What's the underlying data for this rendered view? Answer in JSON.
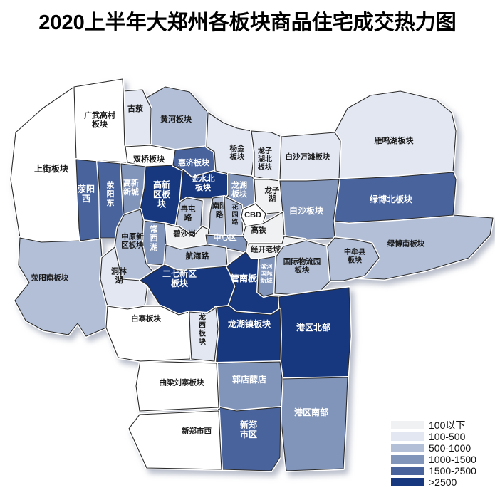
{
  "title": "2020上半年大郑州各板块商品住宅成交热力图",
  "legend": {
    "items": [
      {
        "label": "100以下",
        "color": "#f0f1f3"
      },
      {
        "label": "100-500",
        "color": "#e2e7f2"
      },
      {
        "label": "500-1000",
        "color": "#b2bfd6"
      },
      {
        "label": "1000-1500",
        "color": "#8194b9"
      },
      {
        "label": "1500-2500",
        "color": "#49639d"
      },
      {
        "label": ">2500",
        "color": "#17377e"
      }
    ]
  },
  "map": {
    "no_data_color": "#ffffff",
    "outline_color": "#2a2a2a",
    "regions": [
      {
        "id": "yanminghu",
        "label": [
          "雁鸣湖板块"
        ],
        "range": "100-500"
      },
      {
        "id": "lvbonan",
        "label": [
          "绿博南板块"
        ],
        "range": "500-1000"
      },
      {
        "id": "huanghe",
        "label": [
          "黄河板块"
        ],
        "range": "500-1000"
      },
      {
        "id": "guying",
        "label": [
          "古荥"
        ],
        "range": "100-500"
      },
      {
        "id": "shangjie",
        "label": [
          "上街板块"
        ],
        "range": null
      },
      {
        "id": "guangwu",
        "label": [
          "广武高村",
          "板块"
        ],
        "range": null
      },
      {
        "id": "shuangqiao",
        "label": [
          "双桥板块"
        ],
        "range": null
      },
      {
        "id": "xingyangnan",
        "label": [
          "荥阳南板块"
        ],
        "range": "500-1000"
      },
      {
        "id": "xingyangxi",
        "label": [
          "荥阳",
          "西"
        ],
        "range": "1500-2500"
      },
      {
        "id": "xingyangdong",
        "label": [
          "荥",
          "阳",
          "东"
        ],
        "range": "1500-2500"
      },
      {
        "id": "gaoxincheng",
        "label": [
          "高新",
          "新城"
        ],
        "range": "1000-1500"
      },
      {
        "id": "gaoxinqu",
        "label": [
          "高新",
          "区板",
          "块"
        ],
        "range": ">2500"
      },
      {
        "id": "huiji",
        "label": [
          "惠济板块"
        ],
        "range": "1500-2500"
      },
      {
        "id": "jinshuibei",
        "label": [
          "金水北",
          "板块"
        ],
        "range": ">2500"
      },
      {
        "id": "yangjin",
        "label": [
          "杨金",
          "板块"
        ],
        "range": "100-500"
      },
      {
        "id": "longzihubei",
        "label": [
          "龙子",
          "湖北",
          "板块"
        ],
        "range": "100-500"
      },
      {
        "id": "baishawantan",
        "label": [
          "白沙万滩板块"
        ],
        "range": "100-500"
      },
      {
        "id": "lvbobei",
        "label": [
          "绿博北板块"
        ],
        "range": "1500-2500"
      },
      {
        "id": "longhu",
        "label": [
          "龙湖",
          "板块"
        ],
        "range": "1000-1500"
      },
      {
        "id": "longzihu",
        "label": [
          "龙子",
          "湖"
        ],
        "range": "100以下"
      },
      {
        "id": "baisha",
        "label": [
          "白沙板块"
        ],
        "range": "1000-1500"
      },
      {
        "id": "nanyanglu",
        "label": [
          "南阳",
          "路"
        ],
        "range": "500-1000"
      },
      {
        "id": "huayuanlu",
        "label": [
          "花",
          "园",
          "路"
        ],
        "range": "500-1000"
      },
      {
        "id": "cbd",
        "label": [
          "CBD"
        ],
        "range": null
      },
      {
        "id": "gaotie",
        "label": [
          "高铁"
        ],
        "range": "100以下"
      },
      {
        "id": "jingkai",
        "label": [
          "经开老城"
        ],
        "range": "100以下"
      },
      {
        "id": "rantunlu",
        "label": [
          "冉屯",
          "路"
        ],
        "range": "500-1000"
      },
      {
        "id": "bishagang",
        "label": [
          "碧沙岗"
        ],
        "range": "100以下"
      },
      {
        "id": "changxihu",
        "label": [
          "常",
          "西",
          "湖"
        ],
        "range": "1000-1500"
      },
      {
        "id": "zhongxinqu",
        "label": [
          "中心区"
        ],
        "range": "1000-1500"
      },
      {
        "id": "hanghailu",
        "label": [
          "航海路"
        ],
        "range": "500-1000"
      },
      {
        "id": "zhongyuanxinqu",
        "label": [
          "中原新",
          "区板块"
        ],
        "range": "500-1000"
      },
      {
        "id": "donglinhu",
        "label": [
          "洞林",
          "湖"
        ],
        "range": "100-500"
      },
      {
        "id": "erqixinqu",
        "label": [
          "二七新区",
          "板块"
        ],
        "range": ">2500"
      },
      {
        "id": "guannan",
        "label": [
          "管南板块"
        ],
        "range": ">2500"
      },
      {
        "id": "binhe",
        "label": [
          "滨河",
          "国际",
          "新城"
        ],
        "range": "1000-1500"
      },
      {
        "id": "guojiwuliu",
        "label": [
          "国际物流园",
          "板块"
        ],
        "range": "500-1000"
      },
      {
        "id": "zhongmou",
        "label": [
          "中牟县",
          "板块"
        ],
        "range": "500-1000"
      },
      {
        "id": "gangqubei",
        "label": [
          "港区北部"
        ],
        "range": ">2500"
      },
      {
        "id": "gangqunan",
        "label": [
          "港区南部"
        ],
        "range": "1000-1500"
      },
      {
        "id": "longhuzhen",
        "label": [
          "龙湖镇板块"
        ],
        "range": ">2500"
      },
      {
        "id": "guodian",
        "label": [
          "郭店薛店"
        ],
        "range": "1000-1500"
      },
      {
        "id": "xinzhengshiqu",
        "label": [
          "新郑",
          "市区"
        ],
        "range": "1500-2500"
      },
      {
        "id": "xinzhengxi",
        "label": [
          "新郑市西"
        ],
        "range": null
      },
      {
        "id": "quliang",
        "label": [
          "曲梁刘寨板块"
        ],
        "range": null
      },
      {
        "id": "baizhai",
        "label": [
          "白寨板块"
        ],
        "range": null
      },
      {
        "id": "longxi",
        "label": [
          "龙",
          "西",
          "板",
          "块"
        ],
        "range": "100-500"
      }
    ]
  }
}
